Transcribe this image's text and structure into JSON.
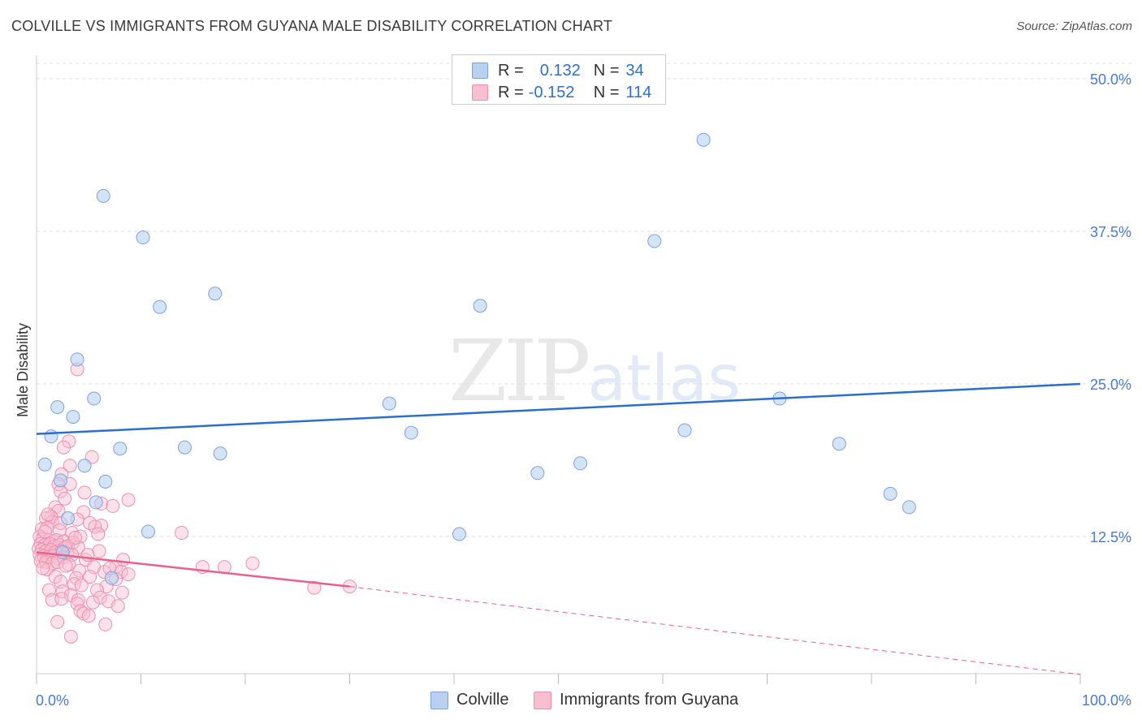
{
  "title": "COLVILLE VS IMMIGRANTS FROM GUYANA MALE DISABILITY CORRELATION CHART",
  "source": "Source: ZipAtlas.com",
  "watermark": {
    "zip": "ZIP",
    "atlas": "atlas"
  },
  "legend": {
    "rows": [
      {
        "r_label": "R =",
        "r_value": "0.132",
        "n_label": "N =",
        "n_value": "34"
      },
      {
        "r_label": "R =",
        "r_value": "-0.152",
        "n_label": "N =",
        "n_value": "114"
      }
    ]
  },
  "bottom_legend": [
    "Colville",
    "Immigrants from Guyana"
  ],
  "colors": {
    "blue_fill": "#b9d0f0",
    "blue_stroke": "#7aa3dd",
    "blue_line": "#2a6fd0",
    "pink_fill": "#f7bfd0",
    "pink_stroke": "#ee8fae",
    "pink_line": "#e8608c",
    "grid": "#dddddd",
    "axis_text": "#4a7bd0"
  },
  "chart_data": {
    "type": "scatter",
    "title": "COLVILLE VS IMMIGRANTS FROM GUYANA MALE DISABILITY CORRELATION CHART",
    "xlabel": "",
    "ylabel": "Male Disability",
    "xlim": [
      0,
      100
    ],
    "ylim": [
      0,
      50
    ],
    "x_tick_labels": [
      "0.0%",
      "100.0%"
    ],
    "y_ticks": [
      12.5,
      25.0,
      37.5,
      50.0
    ],
    "y_tick_labels": [
      "12.5%",
      "25.0%",
      "37.5%",
      "50.0%"
    ],
    "grid": "horizontal dashed",
    "series": [
      {
        "name": "Colville",
        "R": 0.132,
        "N": 34,
        "trend": {
          "x": [
            0,
            100
          ],
          "y": [
            20.9,
            25.0
          ]
        },
        "points": [
          [
            6.4,
            40.4
          ],
          [
            10.2,
            37.0
          ],
          [
            17.1,
            32.4
          ],
          [
            11.8,
            31.3
          ],
          [
            42.5,
            31.4
          ],
          [
            63.9,
            45.0
          ],
          [
            59.2,
            36.7
          ],
          [
            3.9,
            27.0
          ],
          [
            2.0,
            23.1
          ],
          [
            3.5,
            22.3
          ],
          [
            5.5,
            23.8
          ],
          [
            33.8,
            23.4
          ],
          [
            35.9,
            21.0
          ],
          [
            48.0,
            17.7
          ],
          [
            52.1,
            18.5
          ],
          [
            62.1,
            21.2
          ],
          [
            71.2,
            23.8
          ],
          [
            76.9,
            20.1
          ],
          [
            1.4,
            20.7
          ],
          [
            0.8,
            18.4
          ],
          [
            8.0,
            19.7
          ],
          [
            14.2,
            19.8
          ],
          [
            17.6,
            19.3
          ],
          [
            2.3,
            17.1
          ],
          [
            4.6,
            18.3
          ],
          [
            6.6,
            17.0
          ],
          [
            5.7,
            15.3
          ],
          [
            81.8,
            16.0
          ],
          [
            83.6,
            14.9
          ],
          [
            3.0,
            14.0
          ],
          [
            10.7,
            12.9
          ],
          [
            40.5,
            12.7
          ],
          [
            7.2,
            9.1
          ],
          [
            2.5,
            11.2
          ]
        ]
      },
      {
        "name": "Immigrants from Guyana",
        "R": -0.152,
        "N": 114,
        "trend": {
          "x": [
            0,
            30
          ],
          "y": [
            11.2,
            8.4
          ]
        },
        "trend_extended": {
          "x": [
            30,
            100
          ],
          "y": [
            8.4,
            1.2
          ]
        },
        "points": [
          [
            3.9,
            26.2
          ],
          [
            3.1,
            20.3
          ],
          [
            2.6,
            19.8
          ],
          [
            5.3,
            19.0
          ],
          [
            3.2,
            18.3
          ],
          [
            2.4,
            17.6
          ],
          [
            2.1,
            16.8
          ],
          [
            3.2,
            16.8
          ],
          [
            2.3,
            16.2
          ],
          [
            4.6,
            16.1
          ],
          [
            2.7,
            15.6
          ],
          [
            8.8,
            15.5
          ],
          [
            6.2,
            15.2
          ],
          [
            7.3,
            15.0
          ],
          [
            1.8,
            14.9
          ],
          [
            2.1,
            14.6
          ],
          [
            4.5,
            14.5
          ],
          [
            1.4,
            14.1
          ],
          [
            0.9,
            14.0
          ],
          [
            3.9,
            13.9
          ],
          [
            6.2,
            13.4
          ],
          [
            1.5,
            13.7
          ],
          [
            2.3,
            13.6
          ],
          [
            5.1,
            13.6
          ],
          [
            5.6,
            13.3
          ],
          [
            0.5,
            13.1
          ],
          [
            1.0,
            13.2
          ],
          [
            2.2,
            13.0
          ],
          [
            3.4,
            12.8
          ],
          [
            13.9,
            12.8
          ],
          [
            4.2,
            12.5
          ],
          [
            0.3,
            12.5
          ],
          [
            0.6,
            12.3
          ],
          [
            1.2,
            12.2
          ],
          [
            1.9,
            12.2
          ],
          [
            2.6,
            12.1
          ],
          [
            3.5,
            12.0
          ],
          [
            0.4,
            11.9
          ],
          [
            0.8,
            11.8
          ],
          [
            1.3,
            11.9
          ],
          [
            1.7,
            11.7
          ],
          [
            2.2,
            11.8
          ],
          [
            2.7,
            11.6
          ],
          [
            3.0,
            11.7
          ],
          [
            4.0,
            11.6
          ],
          [
            6.0,
            11.3
          ],
          [
            0.2,
            11.5
          ],
          [
            0.5,
            11.4
          ],
          [
            0.9,
            11.3
          ],
          [
            1.4,
            11.4
          ],
          [
            1.8,
            11.2
          ],
          [
            2.4,
            11.3
          ],
          [
            2.9,
            11.1
          ],
          [
            3.4,
            11.0
          ],
          [
            0.3,
            11.0
          ],
          [
            0.7,
            10.9
          ],
          [
            1.1,
            10.8
          ],
          [
            1.6,
            10.9
          ],
          [
            2.1,
            10.7
          ],
          [
            2.6,
            10.8
          ],
          [
            4.7,
            10.6
          ],
          [
            8.3,
            10.6
          ],
          [
            0.4,
            10.5
          ],
          [
            0.9,
            10.4
          ],
          [
            1.5,
            10.3
          ],
          [
            2.0,
            10.4
          ],
          [
            3.1,
            10.2
          ],
          [
            5.5,
            10.0
          ],
          [
            7.6,
            10.0
          ],
          [
            15.9,
            10.0
          ],
          [
            18.0,
            10.0
          ],
          [
            20.7,
            10.3
          ],
          [
            1.0,
            9.8
          ],
          [
            4.1,
            9.7
          ],
          [
            6.5,
            9.6
          ],
          [
            8.1,
            9.6
          ],
          [
            1.8,
            9.2
          ],
          [
            3.8,
            9.1
          ],
          [
            5.1,
            9.2
          ],
          [
            7.6,
            9.0
          ],
          [
            8.8,
            9.4
          ],
          [
            2.3,
            8.8
          ],
          [
            3.6,
            8.6
          ],
          [
            4.3,
            8.5
          ],
          [
            6.7,
            8.4
          ],
          [
            26.6,
            8.3
          ],
          [
            30.0,
            8.4
          ],
          [
            1.2,
            8.1
          ],
          [
            2.5,
            8.0
          ],
          [
            5.8,
            8.1
          ],
          [
            8.2,
            7.9
          ],
          [
            3.3,
            7.7
          ],
          [
            6.1,
            7.5
          ],
          [
            1.5,
            7.3
          ],
          [
            2.4,
            7.4
          ],
          [
            4.0,
            7.3
          ],
          [
            5.4,
            7.1
          ],
          [
            6.9,
            7.2
          ],
          [
            3.9,
            7.0
          ],
          [
            7.8,
            6.8
          ],
          [
            4.2,
            6.4
          ],
          [
            4.5,
            6.2
          ],
          [
            5.0,
            6.0
          ],
          [
            2.0,
            5.5
          ],
          [
            6.6,
            5.3
          ],
          [
            3.3,
            4.3
          ],
          [
            0.8,
            12.9
          ],
          [
            1.1,
            14.3
          ],
          [
            2.8,
            10.1
          ],
          [
            7.0,
            9.9
          ],
          [
            5.9,
            12.7
          ],
          [
            3.7,
            12.4
          ],
          [
            4.9,
            11.0
          ],
          [
            0.6,
            9.9
          ]
        ]
      }
    ]
  }
}
